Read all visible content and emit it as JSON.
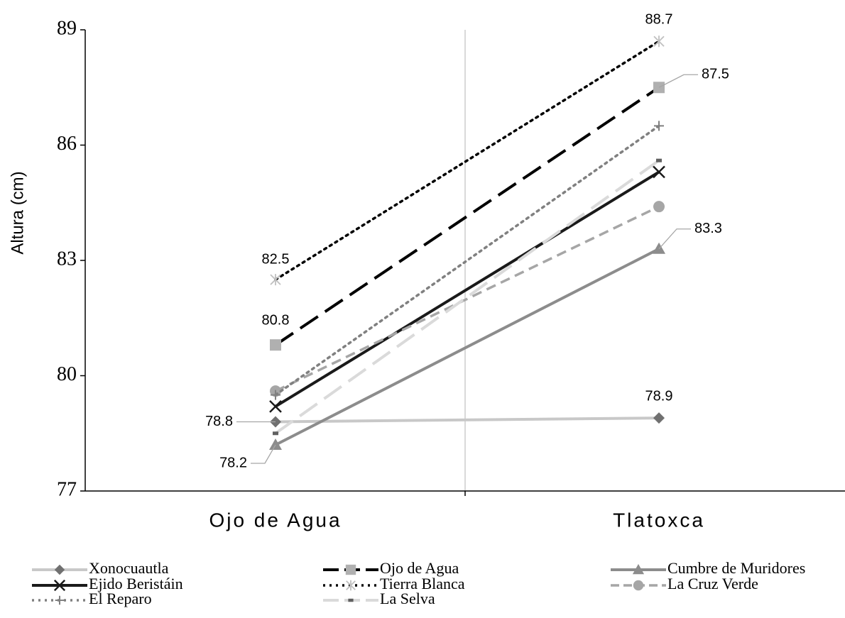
{
  "chart_data": {
    "type": "line",
    "y_label": "Altura (cm)",
    "categories": [
      "Ojo de Agua",
      "Tlatoxca"
    ],
    "ylim": [
      77,
      89
    ],
    "yticks": [
      77,
      80,
      83,
      86,
      89
    ],
    "series": [
      {
        "name": "Xonocuautla",
        "values": [
          78.8,
          78.9
        ],
        "color": "#c8c8c8",
        "marker_color": "#707070",
        "marker": "diamond",
        "dash": "solid",
        "show_labels": true
      },
      {
        "name": "Ojo de Agua",
        "values": [
          80.8,
          87.5
        ],
        "color": "#000000",
        "marker_color": "#b0b0b0",
        "marker": "square",
        "dash": "long-dash",
        "show_labels": true
      },
      {
        "name": "Cumbre de Muridores",
        "values": [
          78.2,
          83.3
        ],
        "color": "#8c8c8c",
        "marker_color": "#8c8c8c",
        "marker": "triangle",
        "dash": "solid",
        "show_labels": true
      },
      {
        "name": "Ejido Beristáin",
        "values": [
          79.2,
          85.3
        ],
        "color": "#1a1a1a",
        "marker_color": "#1a1a1a",
        "marker": "x",
        "dash": "solid",
        "show_labels": false
      },
      {
        "name": "Tierra Blanca",
        "values": [
          82.5,
          88.7
        ],
        "color": "#000000",
        "marker_color": "#c0c0c0",
        "marker": "star",
        "dash": "dot",
        "show_labels": true
      },
      {
        "name": "La Cruz Verde",
        "values": [
          79.6,
          84.4
        ],
        "color": "#a6a6a6",
        "marker_color": "#a6a6a6",
        "marker": "circle",
        "dash": "dash",
        "show_labels": false
      },
      {
        "name": "El Reparo",
        "values": [
          79.5,
          86.5
        ],
        "color": "#808080",
        "marker_color": "#808080",
        "marker": "plus",
        "dash": "dot",
        "show_labels": false
      },
      {
        "name": "La Selva",
        "values": [
          78.5,
          85.6
        ],
        "color": "#dadada",
        "marker_color": "#606060",
        "marker": "dash",
        "dash": "long-dash",
        "show_labels": false
      }
    ]
  }
}
